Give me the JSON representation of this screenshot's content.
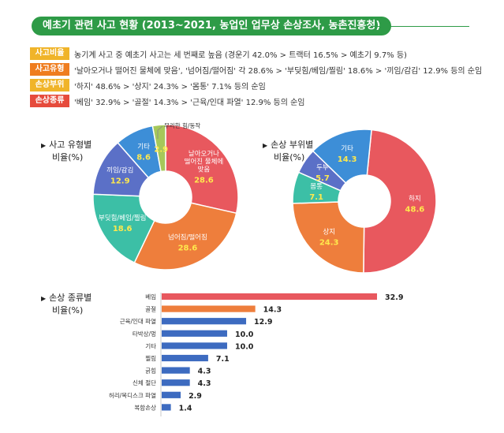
{
  "title": "예초기 관련 사고 현황 (2013~2021, 농업인 업무상 손상조사, 농촌진흥청)",
  "summary": [
    {
      "tag": "사고비율",
      "tag_color": "#f0b429",
      "text": "농기계 사고 중 예초기 사고는 세 번째로 높음 (경운기 42.0% > 트랙터 16.5% > 예초기 9.7% 등)"
    },
    {
      "tag": "사고유형",
      "tag_color": "#ef7d1f",
      "text": "'날아오거나 떨어진 물체에 맞음', '넘어짐/떨어짐' 각 28.6% > '부딪힘/베임/찔림' 18.6% > '끼임/감김' 12.9% 등의 순임"
    },
    {
      "tag": "손상부위",
      "tag_color": "#f0b429",
      "text": "'하지' 48.6% > '상지' 24.3% > '몸통' 7.1% 등의 순임"
    },
    {
      "tag": "손상종류",
      "tag_color": "#e64b3c",
      "text": "'베임' 32.9% > '골절' 14.3% > '근육/인대 파열' 12.9% 등의 순임"
    }
  ],
  "chart_data": [
    {
      "type": "pie",
      "title_lines": [
        "사고 유형별",
        "비율(%)"
      ],
      "categories": [
        "날아오거나 떨어진 물체에 맞음",
        "넘어짐/떨어짐",
        "부딪힘/베임/찔림",
        "끼임/감김",
        "기타",
        "무리한 힘/동작"
      ],
      "label_lines": [
        [
          "날아오거나",
          "떨어진 물체에",
          "맞음"
        ],
        [
          "넘어짐/떨어짐"
        ],
        [
          "부딪힘/베임/찔림"
        ],
        [
          "끼임/감김"
        ],
        [
          "기타"
        ],
        []
      ],
      "values": [
        28.6,
        28.6,
        18.6,
        12.9,
        8.6,
        2.9
      ],
      "colors": [
        "#e8585e",
        "#ee7e3c",
        "#3cbfa6",
        "#5b70c7",
        "#3d8ed7",
        "#a6c85a"
      ],
      "callout": "무리한 힘/동작"
    },
    {
      "type": "pie",
      "title_lines": [
        "손상 부위별",
        "비율(%)"
      ],
      "categories": [
        "하지",
        "상지",
        "몸통",
        "두부",
        "기타"
      ],
      "values": [
        48.6,
        24.3,
        7.1,
        5.7,
        14.3
      ],
      "colors": [
        "#e8585e",
        "#ee7e3c",
        "#3cbfa6",
        "#5b70c7",
        "#3d8ed7"
      ]
    },
    {
      "type": "bar",
      "orientation": "horizontal",
      "title_lines": [
        "손상 종류별",
        "비율(%)"
      ],
      "categories": [
        "베임",
        "골절",
        "근육/인대 파열",
        "타박상/멍",
        "기타",
        "찔림",
        "긁힘",
        "신체 절단",
        "허리/목디스크 파열",
        "복합손상"
      ],
      "values": [
        32.9,
        14.3,
        12.9,
        10.0,
        10.0,
        7.1,
        4.3,
        4.3,
        2.9,
        1.4
      ],
      "value_labels": [
        "32.9",
        "14.3",
        "12.9",
        "10.0",
        "10.0",
        "7.1",
        "4.3",
        "4.3",
        "2.9",
        "1.4"
      ],
      "colors": [
        "#e8585e",
        "#ee7e3c",
        "#3d6bc0",
        "#3d6bc0",
        "#3d6bc0",
        "#3d6bc0",
        "#3d6bc0",
        "#3d6bc0",
        "#3d6bc0",
        "#3d6bc0"
      ]
    }
  ]
}
